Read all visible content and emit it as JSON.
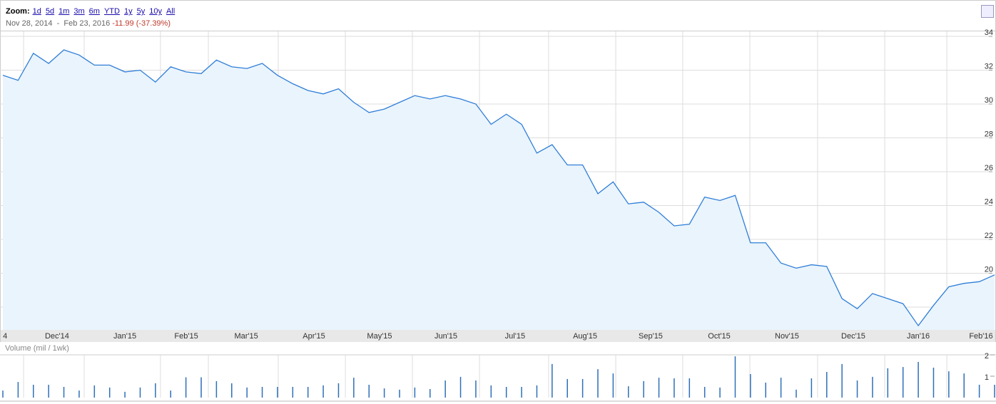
{
  "header": {
    "zoom_label": "Zoom:",
    "zoom_links": [
      "1d",
      "5d",
      "1m",
      "3m",
      "6m",
      "YTD",
      "1y",
      "5y",
      "10y",
      "All"
    ],
    "range_start": "Nov 28, 2014",
    "range_sep": "-",
    "range_end": "Feb 23, 2016",
    "range_change": "-11.99 (-37.39%)"
  },
  "chart_data": [
    {
      "type": "area",
      "color": "#2f7ed8",
      "fill": "#eaf4fc",
      "values": [
        31.7,
        31.4,
        33.0,
        32.4,
        33.2,
        32.9,
        32.3,
        32.3,
        31.9,
        32.0,
        31.3,
        32.2,
        31.9,
        31.8,
        32.6,
        32.2,
        32.1,
        32.4,
        31.7,
        31.2,
        30.8,
        30.6,
        30.9,
        30.1,
        29.5,
        29.7,
        30.1,
        30.5,
        30.3,
        30.5,
        30.3,
        30.0,
        28.8,
        29.4,
        28.8,
        27.1,
        27.6,
        26.4,
        26.4,
        24.7,
        25.4,
        24.1,
        24.2,
        23.6,
        22.8,
        22.9,
        24.5,
        24.3,
        24.6,
        21.8,
        21.8,
        20.6,
        20.3,
        20.5,
        20.4,
        18.5,
        17.9,
        18.8,
        18.5,
        18.2,
        16.9,
        18.1,
        19.2,
        19.4,
        19.5,
        19.9
      ],
      "xlim": [
        0,
        65
      ],
      "ylim": [
        16.65,
        34.17
      ],
      "yticks": [
        18,
        20,
        22,
        24,
        26,
        28,
        30,
        32,
        34
      ],
      "grid": true,
      "xticks": [
        {
          "value": 0.15,
          "label": "4"
        },
        {
          "value": 3.55,
          "label": "Dec'14"
        },
        {
          "value": 8.0,
          "label": "Jan'15"
        },
        {
          "value": 12.02,
          "label": "Feb'15"
        },
        {
          "value": 15.95,
          "label": "Mar'15"
        },
        {
          "value": 20.39,
          "label": "Apr'15"
        },
        {
          "value": 24.69,
          "label": "May'15"
        },
        {
          "value": 29.04,
          "label": "Jun'15"
        },
        {
          "value": 33.57,
          "label": "Jul'15"
        },
        {
          "value": 38.16,
          "label": "Aug'15"
        },
        {
          "value": 42.46,
          "label": "Sep'15"
        },
        {
          "value": 46.95,
          "label": "Oct'15"
        },
        {
          "value": 51.39,
          "label": "Nov'15"
        },
        {
          "value": 55.74,
          "label": "Dec'15"
        },
        {
          "value": 60.0,
          "label": "Jan'16"
        },
        {
          "value": 64.11,
          "label": "Feb'16"
        }
      ],
      "xgrid": [
        1.36,
        5.33,
        10.33,
        13.47,
        18.05,
        22.45,
        26.84,
        31.24,
        35.77,
        40.17,
        44.56,
        48.96,
        53.4,
        57.8,
        61.87
      ]
    },
    {
      "type": "bar",
      "title": "Volume (mil / 1wk)",
      "color": "#2f6fb8",
      "values": [
        0.33,
        0.73,
        0.6,
        0.6,
        0.5,
        0.33,
        0.57,
        0.47,
        0.27,
        0.47,
        0.67,
        0.33,
        0.95,
        0.95,
        0.77,
        0.67,
        0.47,
        0.5,
        0.5,
        0.5,
        0.5,
        0.57,
        0.67,
        0.93,
        0.6,
        0.43,
        0.37,
        0.47,
        0.4,
        0.8,
        0.97,
        0.8,
        0.57,
        0.5,
        0.5,
        0.57,
        1.57,
        0.87,
        0.87,
        1.33,
        1.13,
        0.53,
        0.77,
        0.93,
        0.9,
        0.9,
        0.5,
        0.47,
        1.93,
        1.1,
        0.7,
        0.93,
        0.37,
        0.9,
        1.2,
        1.57,
        0.8,
        0.97,
        1.37,
        1.43,
        1.67,
        1.4,
        1.23,
        1.13,
        0.6,
        0.6
      ],
      "xlim": [
        0,
        65
      ],
      "ylim": [
        0,
        2
      ],
      "yticks": [
        1,
        2
      ]
    }
  ]
}
